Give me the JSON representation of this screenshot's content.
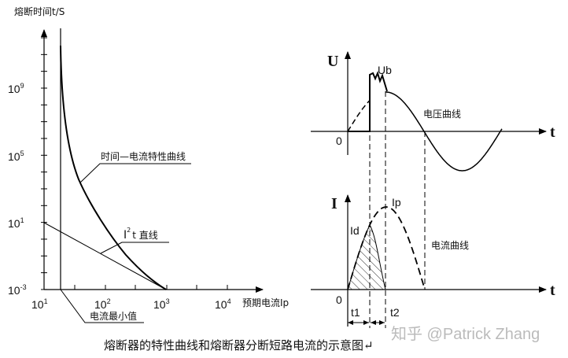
{
  "left_chart": {
    "y_axis_label": "熔断时间t/S",
    "x_axis_label": "预期电流Ip",
    "y_ticks": [
      {
        "base": "10",
        "exp": "9"
      },
      {
        "base": "10",
        "exp": "5"
      },
      {
        "base": "10",
        "exp": "1"
      },
      {
        "base": "10",
        "exp": "-3"
      }
    ],
    "x_ticks": [
      {
        "base": "10",
        "exp": "1"
      },
      {
        "base": "10",
        "exp": "2"
      },
      {
        "base": "10",
        "exp": "3"
      },
      {
        "base": "10",
        "exp": "4"
      }
    ],
    "curve_label": "时间—电流特性曲线",
    "i2t_label": {
      "base": "I",
      "exp": "2",
      "rest": "t 直线"
    },
    "min_current_label": "电流最小值"
  },
  "voltage_chart": {
    "axis_label": "U",
    "time_label": "t",
    "origin": "0",
    "peak_label": "Ub",
    "curve_label": "电压曲线"
  },
  "current_chart": {
    "axis_label": "I",
    "time_label": "t",
    "origin": "0",
    "peak_label": "Ip",
    "cutoff_label": "Id",
    "curve_label": "电流曲线",
    "t1": "t1",
    "t2": "t2"
  },
  "caption": "熔断器的特性曲线和熔断器分断短路电流的示意图↵",
  "watermark": "知乎 @Patrick Zhang"
}
